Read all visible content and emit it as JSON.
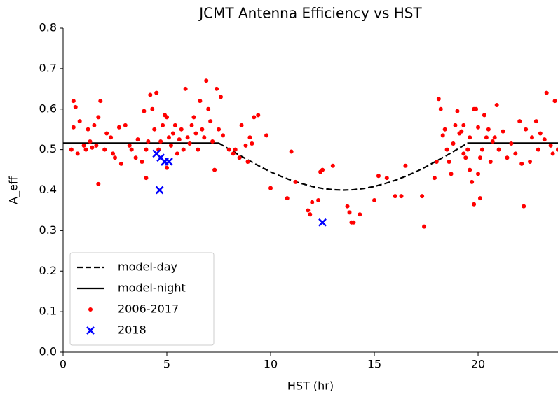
{
  "chart_data": {
    "type": "scatter",
    "title": "JCMT Antenna Efficiency vs HST",
    "x_label": "HST (hr)",
    "y_label": "A_eff",
    "xlim": [
      0,
      23.85
    ],
    "ylim": [
      0,
      0.8
    ],
    "xticks": [
      0,
      5,
      10,
      15,
      20
    ],
    "yticks": [
      {
        "value": 0,
        "label": "0.0"
      },
      0.1,
      0.2,
      0.3,
      0.4,
      0.5,
      0.6,
      0.7,
      0.8
    ],
    "legend": "lower left",
    "series": [
      {
        "name": "model-day",
        "kind": "line",
        "style": "dashed",
        "color": "#000000",
        "x": [
          7.5,
          8,
          8.5,
          9,
          9.5,
          10,
          10.5,
          11,
          11.5,
          12,
          12.5,
          13,
          13.5,
          14,
          14.5,
          15,
          15.5,
          16,
          16.5,
          17,
          17.5,
          18,
          18.5,
          19,
          19.5
        ],
        "values": [
          0.516,
          0.501,
          0.486,
          0.472,
          0.458,
          0.445,
          0.434,
          0.424,
          0.416,
          0.409,
          0.404,
          0.401,
          0.4,
          0.401,
          0.404,
          0.409,
          0.416,
          0.424,
          0.434,
          0.445,
          0.458,
          0.472,
          0.486,
          0.501,
          0.516
        ]
      },
      {
        "name": "model-night",
        "kind": "line",
        "style": "solid",
        "color": "#000000",
        "x": [
          0,
          7.5,
          13.5,
          19.5,
          23.85
        ],
        "values": [
          0.516,
          0.516,
          null,
          0.516,
          0.516
        ]
      },
      {
        "name": "2006-2017",
        "kind": "point",
        "marker": "o",
        "color": "#ff0000",
        "x": [
          0.4,
          0.5,
          0.5,
          0.6,
          0.7,
          0.8,
          1.0,
          1.1,
          1.2,
          1.3,
          1.4,
          1.5,
          1.6,
          1.7,
          1.7,
          1.8,
          2.0,
          2.1,
          2.3,
          2.4,
          2.5,
          2.7,
          2.8,
          3.0,
          3.2,
          3.3,
          3.5,
          3.6,
          3.8,
          3.9,
          4.0,
          4.0,
          4.1,
          4.2,
          4.3,
          4.4,
          4.5,
          4.6,
          4.7,
          4.8,
          4.9,
          5.0,
          5.0,
          5.1,
          5.2,
          5.3,
          5.4,
          5.5,
          5.6,
          5.7,
          5.8,
          5.9,
          6.0,
          6.1,
          6.2,
          6.3,
          6.4,
          6.5,
          6.6,
          6.7,
          6.8,
          6.9,
          7.0,
          7.1,
          7.2,
          7.3,
          7.4,
          7.5,
          7.6,
          7.7,
          8.0,
          8.2,
          8.3,
          8.5,
          8.6,
          8.8,
          8.9,
          9.0,
          9.1,
          9.2,
          9.4,
          9.8,
          10.0,
          10.8,
          11.0,
          11.2,
          11.8,
          11.9,
          12.0,
          12.3,
          12.4,
          12.5,
          13.0,
          13.7,
          13.8,
          13.9,
          14.0,
          14.3,
          15.0,
          15.2,
          15.6,
          16.0,
          16.3,
          16.5,
          17.3,
          17.4,
          17.9,
          18.0,
          18.1,
          18.2,
          18.3,
          18.4,
          18.5,
          18.6,
          18.7,
          18.8,
          18.9,
          19.0,
          19.1,
          19.2,
          19.3,
          19.4,
          19.5,
          19.6,
          19.6,
          19.7,
          19.8,
          19.9,
          20.0,
          20.0,
          20.1,
          20.2,
          20.3,
          20.4,
          20.5,
          20.6,
          20.8,
          20.9,
          21.0,
          21.2,
          21.4,
          21.6,
          21.8,
          22.0,
          22.1,
          22.2,
          22.3,
          22.5,
          22.6,
          22.8,
          22.9,
          23.0,
          23.2,
          23.3,
          23.5,
          23.6,
          23.7,
          23.85,
          19.3,
          19.8,
          20.1,
          20.7
        ],
        "values": [
          0.5,
          0.62,
          0.555,
          0.605,
          0.49,
          0.57,
          0.51,
          0.5,
          0.55,
          0.52,
          0.505,
          0.56,
          0.51,
          0.58,
          0.415,
          0.62,
          0.5,
          0.54,
          0.53,
          0.49,
          0.48,
          0.555,
          0.465,
          0.56,
          0.51,
          0.5,
          0.48,
          0.525,
          0.47,
          0.595,
          0.5,
          0.43,
          0.52,
          0.635,
          0.6,
          0.55,
          0.64,
          0.5,
          0.52,
          0.56,
          0.585,
          0.58,
          0.455,
          0.53,
          0.51,
          0.54,
          0.56,
          0.49,
          0.525,
          0.55,
          0.5,
          0.65,
          0.53,
          0.515,
          0.56,
          0.58,
          0.54,
          0.5,
          0.62,
          0.55,
          0.53,
          0.67,
          0.6,
          0.57,
          0.52,
          0.45,
          0.65,
          0.55,
          0.63,
          0.535,
          0.5,
          0.49,
          0.5,
          0.48,
          0.56,
          0.51,
          0.47,
          0.53,
          0.515,
          0.58,
          0.585,
          0.535,
          0.405,
          0.38,
          0.495,
          0.42,
          0.35,
          0.34,
          0.37,
          0.375,
          0.445,
          0.45,
          0.46,
          0.36,
          0.345,
          0.32,
          0.32,
          0.34,
          0.375,
          0.435,
          0.43,
          0.385,
          0.385,
          0.46,
          0.385,
          0.31,
          0.43,
          0.47,
          0.625,
          0.6,
          0.535,
          0.55,
          0.5,
          0.47,
          0.44,
          0.515,
          0.56,
          0.595,
          0.54,
          0.545,
          0.49,
          0.48,
          0.5,
          0.53,
          0.45,
          0.42,
          0.365,
          0.6,
          0.44,
          0.555,
          0.38,
          0.5,
          0.585,
          0.53,
          0.55,
          0.47,
          0.53,
          0.61,
          0.5,
          0.545,
          0.48,
          0.515,
          0.49,
          0.57,
          0.465,
          0.36,
          0.55,
          0.47,
          0.53,
          0.57,
          0.5,
          0.54,
          0.525,
          0.64,
          0.51,
          0.49,
          0.62,
          0.5,
          0.56,
          0.6,
          0.48,
          0.52
        ]
      },
      {
        "name": "2018",
        "kind": "point",
        "marker": "x",
        "color": "#0000ff",
        "x": [
          4.5,
          4.7,
          4.9,
          5.1,
          4.65,
          12.5
        ],
        "values": [
          0.49,
          0.48,
          0.47,
          0.47,
          0.4,
          0.32
        ]
      }
    ]
  }
}
